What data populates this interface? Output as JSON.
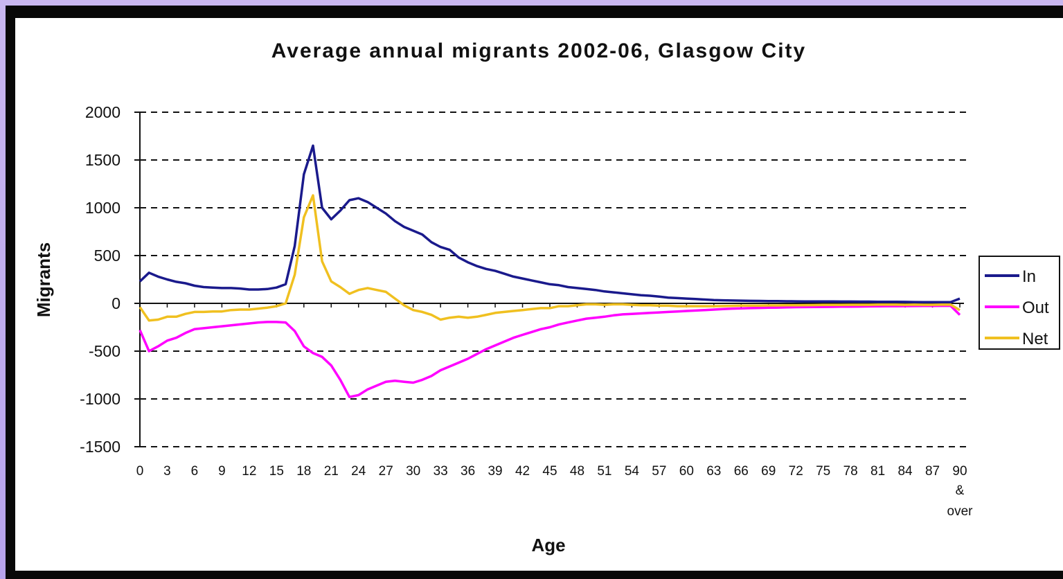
{
  "chart_data": {
    "type": "line",
    "title": "Average annual migrants 2002-06, Glasgow City",
    "xlabel": "Age",
    "ylabel": "Migrants",
    "ylim": [
      -1500,
      2000
    ],
    "yticks": [
      "2000",
      "1500",
      "1000",
      "500",
      "0",
      "-500",
      "-1000",
      "-1500"
    ],
    "ytick_values": [
      2000,
      1500,
      1000,
      500,
      0,
      -500,
      -1000,
      -1500
    ],
    "xticks": [
      "0",
      "3",
      "6",
      "9",
      "12",
      "15",
      "18",
      "21",
      "24",
      "27",
      "30",
      "33",
      "36",
      "39",
      "42",
      "45",
      "48",
      "51",
      "54",
      "57",
      "60",
      "63",
      "66",
      "69",
      "72",
      "75",
      "78",
      "81",
      "84",
      "87",
      "90"
    ],
    "xtick_last_extra": [
      "&",
      "over"
    ],
    "grid": "horizontal dashed",
    "legend_position": "right",
    "x": [
      0,
      1,
      2,
      3,
      4,
      5,
      6,
      7,
      8,
      9,
      10,
      11,
      12,
      13,
      14,
      15,
      16,
      17,
      18,
      19,
      20,
      21,
      22,
      23,
      24,
      25,
      26,
      27,
      28,
      29,
      30,
      31,
      32,
      33,
      34,
      35,
      36,
      37,
      38,
      39,
      40,
      41,
      42,
      43,
      44,
      45,
      46,
      47,
      48,
      49,
      50,
      51,
      52,
      53,
      54,
      55,
      56,
      57,
      58,
      59,
      60,
      61,
      62,
      63,
      64,
      65,
      66,
      67,
      68,
      69,
      70,
      71,
      72,
      73,
      74,
      75,
      76,
      77,
      78,
      79,
      80,
      81,
      82,
      83,
      84,
      85,
      86,
      87,
      88,
      89,
      90
    ],
    "series": [
      {
        "name": "In",
        "color": "#1a1a8c",
        "values": [
          230,
          320,
          280,
          250,
          225,
          210,
          185,
          170,
          165,
          160,
          160,
          155,
          145,
          145,
          150,
          165,
          200,
          600,
          1350,
          1650,
          1000,
          880,
          970,
          1080,
          1100,
          1060,
          1000,
          940,
          860,
          800,
          760,
          720,
          640,
          590,
          560,
          480,
          430,
          390,
          360,
          340,
          310,
          280,
          260,
          240,
          220,
          200,
          190,
          170,
          160,
          150,
          140,
          125,
          115,
          105,
          95,
          85,
          80,
          70,
          60,
          55,
          50,
          45,
          40,
          35,
          32,
          30,
          28,
          26,
          25,
          24,
          23,
          22,
          21,
          20,
          20,
          20,
          20,
          19,
          19,
          18,
          18,
          17,
          17,
          16,
          15,
          14,
          13,
          12,
          12,
          12,
          50
        ]
      },
      {
        "name": "Out",
        "color": "#ff00ff",
        "values": [
          -280,
          -500,
          -450,
          -390,
          -360,
          -310,
          -270,
          -260,
          -250,
          -240,
          -230,
          -220,
          -210,
          -200,
          -195,
          -195,
          -200,
          -290,
          -450,
          -520,
          -560,
          -650,
          -800,
          -980,
          -960,
          -900,
          -860,
          -820,
          -810,
          -820,
          -830,
          -800,
          -760,
          -700,
          -660,
          -620,
          -580,
          -530,
          -480,
          -440,
          -400,
          -360,
          -330,
          -300,
          -270,
          -250,
          -220,
          -200,
          -180,
          -160,
          -150,
          -140,
          -125,
          -115,
          -110,
          -105,
          -100,
          -95,
          -90,
          -85,
          -80,
          -75,
          -70,
          -65,
          -60,
          -55,
          -52,
          -50,
          -48,
          -46,
          -44,
          -42,
          -40,
          -39,
          -38,
          -37,
          -36,
          -35,
          -34,
          -33,
          -32,
          -31,
          -30,
          -30,
          -29,
          -28,
          -27,
          -27,
          -26,
          -26,
          -120
        ]
      },
      {
        "name": "Net",
        "color": "#f0c020",
        "values": [
          -40,
          -180,
          -170,
          -140,
          -140,
          -110,
          -90,
          -90,
          -85,
          -85,
          -70,
          -65,
          -65,
          -55,
          -45,
          -30,
          0,
          300,
          900,
          1130,
          440,
          230,
          170,
          100,
          140,
          160,
          140,
          120,
          50,
          -20,
          -70,
          -90,
          -120,
          -170,
          -150,
          -140,
          -150,
          -140,
          -120,
          -100,
          -90,
          -80,
          -70,
          -60,
          -50,
          -50,
          -30,
          -30,
          -20,
          -10,
          -10,
          -15,
          -10,
          -10,
          -15,
          -20,
          -20,
          -25,
          -25,
          -30,
          -30,
          -30,
          -30,
          -30,
          -28,
          -26,
          -24,
          -24,
          -24,
          -22,
          -22,
          -20,
          -20,
          -19,
          -18,
          -17,
          -16,
          -16,
          -15,
          -15,
          -15,
          -14,
          -14,
          -14,
          -15,
          -14,
          -15,
          -15,
          -14,
          -14,
          -70
        ]
      }
    ]
  }
}
